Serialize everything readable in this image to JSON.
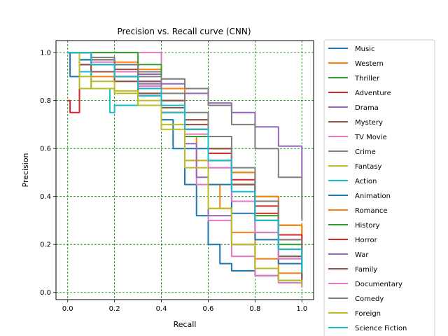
{
  "chart_data": {
    "type": "line",
    "title": "Precision vs. Recall curve (CNN)",
    "xlabel": "Recall",
    "ylabel": "Precision",
    "xlim": [
      -0.05,
      1.05
    ],
    "ylim": [
      -0.03,
      1.05
    ],
    "xticks": [
      0.0,
      0.2,
      0.4,
      0.6,
      0.8,
      1.0
    ],
    "yticks": [
      0.0,
      0.2,
      0.4,
      0.6,
      0.8,
      1.0
    ],
    "xtick_labels": [
      "0.0",
      "0.2",
      "0.4",
      "0.6",
      "0.8",
      "1.0"
    ],
    "ytick_labels": [
      "0.0",
      "0.2",
      "0.4",
      "0.6",
      "0.8",
      "1.0"
    ],
    "grid": true,
    "grid_color": "#008000",
    "grid_style": "dashed",
    "legend_position": "outside-right",
    "series": [
      {
        "name": "Music",
        "color": "#1f77b4",
        "x": [
          0,
          0.01,
          0.05,
          0.1,
          0.2,
          0.3,
          0.4,
          0.45,
          0.5,
          0.55,
          0.6,
          0.65,
          0.7,
          0.8,
          0.9,
          1.0
        ],
        "y": [
          1.0,
          0.9,
          0.97,
          0.95,
          0.9,
          0.83,
          0.72,
          0.6,
          0.45,
          0.32,
          0.2,
          0.12,
          0.09,
          0.07,
          0.05,
          0.04
        ]
      },
      {
        "name": "Western",
        "color": "#ff7f0e",
        "x": [
          0,
          0.05,
          0.1,
          0.2,
          0.3,
          0.4,
          0.5,
          0.55,
          0.6,
          0.65,
          0.7,
          0.8,
          0.9,
          1.0
        ],
        "y": [
          1.0,
          0.95,
          0.9,
          0.88,
          0.85,
          0.75,
          0.65,
          0.55,
          0.45,
          0.35,
          0.25,
          0.14,
          0.08,
          0.05
        ]
      },
      {
        "name": "Thriller",
        "color": "#2ca02c",
        "x": [
          0,
          0.05,
          0.1,
          0.2,
          0.3,
          0.4,
          0.5,
          0.6,
          0.7,
          0.8,
          0.9,
          1.0
        ],
        "y": [
          1.0,
          0.97,
          0.95,
          0.9,
          0.85,
          0.78,
          0.68,
          0.6,
          0.5,
          0.4,
          0.28,
          0.12
        ]
      },
      {
        "name": "Adventure",
        "color": "#d62728",
        "x": [
          0,
          0.01,
          0.05,
          0.1,
          0.2,
          0.3,
          0.4,
          0.5,
          0.6,
          0.7,
          0.8,
          0.9,
          1.0
        ],
        "y": [
          0.8,
          0.75,
          0.95,
          0.95,
          0.9,
          0.82,
          0.75,
          0.65,
          0.55,
          0.45,
          0.33,
          0.22,
          0.12
        ]
      },
      {
        "name": "Drama",
        "color": "#9467bd",
        "x": [
          0,
          0.1,
          0.2,
          0.3,
          0.4,
          0.5,
          0.6,
          0.7,
          0.8,
          0.9,
          1.0
        ],
        "y": [
          1.0,
          0.97,
          0.95,
          0.91,
          0.87,
          0.83,
          0.79,
          0.75,
          0.69,
          0.61,
          0.48
        ]
      },
      {
        "name": "Mystery",
        "color": "#8c564b",
        "x": [
          0,
          0.05,
          0.1,
          0.2,
          0.3,
          0.4,
          0.5,
          0.6,
          0.7,
          0.8,
          0.9,
          1.0
        ],
        "y": [
          1.0,
          0.95,
          0.92,
          0.88,
          0.83,
          0.77,
          0.7,
          0.58,
          0.45,
          0.3,
          0.18,
          0.06
        ]
      },
      {
        "name": "TV Movie",
        "color": "#e377c2",
        "x": [
          0,
          0.05,
          0.1,
          0.2,
          0.3,
          0.4,
          0.5,
          0.55,
          0.6,
          0.7,
          0.8,
          0.9,
          1.0
        ],
        "y": [
          1.0,
          1.0,
          1.0,
          1.0,
          1.0,
          0.78,
          0.55,
          0.45,
          0.3,
          0.15,
          0.07,
          0.04,
          0.02
        ]
      },
      {
        "name": "Crime",
        "color": "#7f7f7f",
        "x": [
          0,
          0.1,
          0.2,
          0.3,
          0.4,
          0.5,
          0.6,
          0.7,
          0.8,
          0.9,
          1.0
        ],
        "y": [
          1.0,
          0.98,
          0.95,
          0.92,
          0.89,
          0.85,
          0.78,
          0.7,
          0.6,
          0.48,
          0.3
        ]
      },
      {
        "name": "Fantasy",
        "color": "#bcbd22",
        "x": [
          0,
          0.05,
          0.1,
          0.2,
          0.3,
          0.4,
          0.5,
          0.6,
          0.7,
          0.8,
          0.9,
          1.0
        ],
        "y": [
          1.0,
          0.85,
          0.88,
          0.84,
          0.8,
          0.7,
          0.55,
          0.35,
          0.2,
          0.1,
          0.05,
          0.03
        ]
      },
      {
        "name": "Action",
        "color": "#17becf",
        "x": [
          0,
          0.05,
          0.1,
          0.18,
          0.2,
          0.3,
          0.4,
          0.5,
          0.6,
          0.7,
          0.8,
          0.9,
          1.0
        ],
        "y": [
          1.0,
          0.92,
          0.85,
          0.75,
          0.78,
          0.82,
          0.75,
          0.65,
          0.52,
          0.38,
          0.25,
          0.15,
          0.08
        ]
      },
      {
        "name": "Animation",
        "color": "#1f77b4",
        "x": [
          0,
          0.05,
          0.1,
          0.2,
          0.3,
          0.4,
          0.5,
          0.6,
          0.7,
          0.8,
          0.9,
          1.0
        ],
        "y": [
          1.0,
          0.97,
          0.95,
          0.92,
          0.88,
          0.8,
          0.6,
          0.45,
          0.33,
          0.22,
          0.12,
          0.06
        ]
      },
      {
        "name": "Romance",
        "color": "#ff7f0e",
        "x": [
          0,
          0.1,
          0.2,
          0.3,
          0.4,
          0.5,
          0.6,
          0.7,
          0.8,
          0.9,
          1.0
        ],
        "y": [
          1.0,
          0.97,
          0.96,
          0.93,
          0.85,
          0.72,
          0.6,
          0.5,
          0.4,
          0.28,
          0.16
        ]
      },
      {
        "name": "History",
        "color": "#2ca02c",
        "x": [
          0,
          0.1,
          0.2,
          0.3,
          0.4,
          0.5,
          0.6,
          0.7,
          0.8,
          0.9,
          1.0
        ],
        "y": [
          1.0,
          1.0,
          1.0,
          0.95,
          0.8,
          0.65,
          0.55,
          0.45,
          0.32,
          0.2,
          0.1
        ]
      },
      {
        "name": "Horror",
        "color": "#d62728",
        "x": [
          0,
          0.1,
          0.2,
          0.3,
          0.4,
          0.5,
          0.6,
          0.7,
          0.8,
          0.9,
          1.0
        ],
        "y": [
          1.0,
          0.97,
          0.92,
          0.86,
          0.78,
          0.68,
          0.58,
          0.47,
          0.36,
          0.24,
          0.13
        ]
      },
      {
        "name": "War",
        "color": "#9467bd",
        "x": [
          0,
          0.1,
          0.2,
          0.3,
          0.4,
          0.5,
          0.55,
          0.6,
          0.7,
          0.8,
          0.9,
          1.0
        ],
        "y": [
          1.0,
          0.95,
          0.92,
          0.87,
          0.8,
          0.62,
          0.48,
          0.32,
          0.2,
          0.1,
          0.05,
          0.03
        ]
      },
      {
        "name": "Family",
        "color": "#8c564b",
        "x": [
          0,
          0.1,
          0.2,
          0.3,
          0.4,
          0.5,
          0.6,
          0.7,
          0.8,
          0.9,
          1.0
        ],
        "y": [
          1.0,
          0.97,
          0.93,
          0.88,
          0.8,
          0.72,
          0.6,
          0.45,
          0.3,
          0.15,
          0.05
        ]
      },
      {
        "name": "Documentary",
        "color": "#e377c2",
        "x": [
          0,
          0.1,
          0.2,
          0.3,
          0.4,
          0.5,
          0.6,
          0.7,
          0.8,
          0.9,
          1.0
        ],
        "y": [
          1.0,
          0.96,
          0.92,
          0.86,
          0.78,
          0.66,
          0.52,
          0.38,
          0.25,
          0.14,
          0.08
        ]
      },
      {
        "name": "Comedy",
        "color": "#7f7f7f",
        "x": [
          0,
          0.1,
          0.2,
          0.3,
          0.4,
          0.5,
          0.6,
          0.7,
          0.8,
          0.9,
          1.0
        ],
        "y": [
          1.0,
          0.97,
          0.95,
          0.9,
          0.83,
          0.75,
          0.65,
          0.52,
          0.38,
          0.22,
          0.1
        ]
      },
      {
        "name": "Foreign",
        "color": "#bcbd22",
        "x": [
          0,
          0.05,
          0.1,
          0.2,
          0.3,
          0.4,
          0.5,
          0.6,
          0.7,
          0.8,
          0.9,
          1.0
        ],
        "y": [
          1.0,
          0.9,
          0.85,
          0.83,
          0.78,
          0.68,
          0.52,
          0.35,
          0.2,
          0.1,
          0.05,
          0.03
        ]
      },
      {
        "name": "Science Fiction",
        "color": "#17becf",
        "x": [
          0,
          0.1,
          0.2,
          0.3,
          0.4,
          0.5,
          0.6,
          0.7,
          0.8,
          0.9,
          1.0
        ],
        "y": [
          1.0,
          0.95,
          0.9,
          0.85,
          0.78,
          0.68,
          0.55,
          0.42,
          0.3,
          0.18,
          0.08
        ]
      }
    ]
  }
}
